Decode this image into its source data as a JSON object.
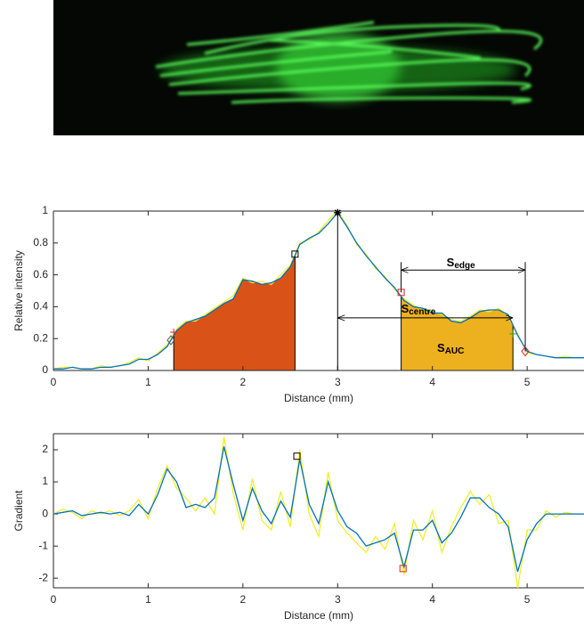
{
  "chart_data": [
    {
      "type": "line",
      "xlabel": "Distance (mm)",
      "ylabel": "Relative intensity",
      "xlim": [
        0,
        5.6
      ],
      "ylim": [
        0,
        1
      ],
      "xticks": [
        0,
        1,
        2,
        3,
        4,
        5
      ],
      "yticks": [
        0,
        0.2,
        0.4,
        0.6,
        0.8,
        1
      ],
      "x": [
        0,
        0.1,
        0.2,
        0.3,
        0.4,
        0.5,
        0.6,
        0.7,
        0.8,
        0.9,
        1,
        1.1,
        1.2,
        1.3,
        1.4,
        1.5,
        1.6,
        1.7,
        1.8,
        1.9,
        2,
        2.1,
        2.2,
        2.3,
        2.4,
        2.5,
        2.6,
        2.7,
        2.8,
        2.9,
        3,
        3.1,
        3.2,
        3.3,
        3.4,
        3.5,
        3.6,
        3.7,
        3.8,
        3.9,
        4,
        4.1,
        4.2,
        4.3,
        4.4,
        4.5,
        4.6,
        4.7,
        4.8,
        4.9,
        5,
        5.1,
        5.2,
        5.3,
        5.4,
        5.5,
        5.6
      ],
      "series": [
        {
          "color": "#f2ee2b",
          "values": [
            0.01,
            0.02,
            0.02,
            0.01,
            0.01,
            0.03,
            0.02,
            0.03,
            0.05,
            0.08,
            0.06,
            0.11,
            0.16,
            0.26,
            0.31,
            0.31,
            0.35,
            0.39,
            0.43,
            0.47,
            0.58,
            0.55,
            0.56,
            0.54,
            0.6,
            0.66,
            0.8,
            0.82,
            0.87,
            0.94,
            1,
            0.91,
            0.79,
            0.73,
            0.64,
            0.59,
            0.51,
            0.45,
            0.41,
            0.38,
            0.37,
            0.35,
            0.32,
            0.31,
            0.34,
            0.38,
            0.37,
            0.39,
            0.34,
            0.23,
            0.11,
            0.1,
            0.09,
            0.08,
            0.09,
            0.08,
            0.08
          ]
        },
        {
          "color": "#0072bd",
          "values": [
            0.01,
            0.01,
            0.02,
            0.01,
            0.01,
            0.02,
            0.02,
            0.03,
            0.04,
            0.07,
            0.07,
            0.1,
            0.15,
            0.25,
            0.3,
            0.32,
            0.34,
            0.38,
            0.42,
            0.45,
            0.57,
            0.56,
            0.54,
            0.55,
            0.58,
            0.65,
            0.79,
            0.83,
            0.86,
            0.92,
            0.99,
            0.9,
            0.8,
            0.72,
            0.65,
            0.58,
            0.52,
            0.44,
            0.4,
            0.39,
            0.36,
            0.36,
            0.31,
            0.3,
            0.33,
            0.37,
            0.38,
            0.38,
            0.35,
            0.22,
            0.12,
            0.1,
            0.09,
            0.08,
            0.08,
            0.08,
            0.08
          ]
        }
      ],
      "regions": [
        {
          "x0": 1.27,
          "x1": 2.55,
          "color": "#d95319"
        },
        {
          "x0": 3.67,
          "x1": 4.85,
          "color": "#edb120"
        }
      ],
      "vlines": [
        {
          "x": 3,
          "y0": 0,
          "y1": 1
        },
        {
          "x": 3.67,
          "y0": 0.49,
          "y1": 0.68
        },
        {
          "x": 4.98,
          "y0": 0.12,
          "y1": 0.68
        }
      ],
      "arrows": [
        {
          "x0": 3.67,
          "x1": 4.98,
          "y": 0.63
        },
        {
          "x0": 3,
          "x1": 4.85,
          "y": 0.33
        }
      ],
      "annotations": [
        {
          "text": "S",
          "sub": "edge"
        },
        {
          "text": "S",
          "sub": "centre"
        },
        {
          "text": "S",
          "sub": "AUC"
        }
      ],
      "markers": [
        {
          "x": 3,
          "y": 0.99,
          "shape": "star",
          "color": "#000000"
        },
        {
          "x": 2.55,
          "y": 0.73,
          "shape": "square",
          "color": "#000000"
        },
        {
          "x": 3.67,
          "y": 0.49,
          "shape": "square",
          "color": "#d62728"
        },
        {
          "x": 4.98,
          "y": 0.12,
          "shape": "diamond",
          "color": "#d62728"
        },
        {
          "x": 1.24,
          "y": 0.19,
          "shape": "diamond",
          "color": "#555555"
        },
        {
          "x": 1.27,
          "y": 0.24,
          "shape": "plus",
          "color": "#d62728"
        },
        {
          "x": 4.85,
          "y": 0.23,
          "shape": "plus",
          "color": "#2ca02c"
        }
      ]
    },
    {
      "type": "line",
      "xlabel": "Distance (mm)",
      "ylabel": "Gradient",
      "xlim": [
        0,
        5.6
      ],
      "ylim": [
        -2.3,
        2.5
      ],
      "xticks": [
        0,
        1,
        2,
        3,
        4,
        5
      ],
      "yticks": [
        -2,
        -1,
        0,
        1,
        2
      ],
      "x": [
        0,
        0.1,
        0.2,
        0.3,
        0.4,
        0.5,
        0.6,
        0.7,
        0.8,
        0.9,
        1,
        1.1,
        1.2,
        1.3,
        1.4,
        1.5,
        1.6,
        1.7,
        1.8,
        1.9,
        2,
        2.1,
        2.2,
        2.3,
        2.4,
        2.5,
        2.6,
        2.7,
        2.8,
        2.9,
        3,
        3.1,
        3.2,
        3.3,
        3.4,
        3.5,
        3.6,
        3.7,
        3.8,
        3.9,
        4,
        4.1,
        4.2,
        4.3,
        4.4,
        4.5,
        4.6,
        4.7,
        4.8,
        4.9,
        5,
        5.1,
        5.2,
        5.3,
        5.4,
        5.5,
        5.6
      ],
      "series": [
        {
          "color": "#f2ee2b",
          "values": [
            0,
            0.15,
            0.05,
            -0.15,
            0.1,
            0.0,
            0.1,
            -0.05,
            0.1,
            0.45,
            -0.15,
            0.8,
            1.5,
            0.8,
            0.5,
            0.1,
            0.5,
            0.0,
            2.4,
            0.6,
            -0.5,
            1.1,
            -0.2,
            -0.5,
            0.7,
            -0.4,
            2.0,
            0.0,
            -0.7,
            1.3,
            -0.2,
            -0.6,
            -0.9,
            -1.2,
            -0.7,
            -1.1,
            -0.3,
            -1.9,
            -0.2,
            -0.8,
            0.1,
            -1.2,
            -0.4,
            0.2,
            0.7,
            0.3,
            0.6,
            -0.3,
            -0.2,
            -2.3,
            -0.5,
            -0.5,
            0.1,
            -0.1,
            0.05,
            0.0,
            0.0
          ]
        },
        {
          "color": "#0072bd",
          "values": [
            0,
            0.05,
            0.1,
            -0.05,
            0.0,
            0.05,
            0.0,
            0.05,
            -0.05,
            0.3,
            0.0,
            0.6,
            1.4,
            1.0,
            0.2,
            0.3,
            0.2,
            0.5,
            2.1,
            0.9,
            -0.2,
            0.8,
            0.1,
            -0.3,
            0.4,
            -0.1,
            1.7,
            0.3,
            -0.3,
            1.0,
            0.1,
            -0.4,
            -0.6,
            -1.0,
            -0.9,
            -0.8,
            -0.6,
            -1.65,
            -0.5,
            -0.5,
            -0.2,
            -0.9,
            -0.6,
            -0.1,
            0.5,
            0.5,
            0.2,
            0.0,
            -0.4,
            -1.8,
            -0.8,
            -0.3,
            0.0,
            0.0,
            0.0,
            0.0,
            0.0
          ]
        }
      ],
      "markers": [
        {
          "x": 2.57,
          "y": 1.8,
          "shape": "square",
          "color": "#000000"
        },
        {
          "x": 3.69,
          "y": -1.7,
          "shape": "square",
          "color": "#d62728"
        }
      ]
    }
  ]
}
